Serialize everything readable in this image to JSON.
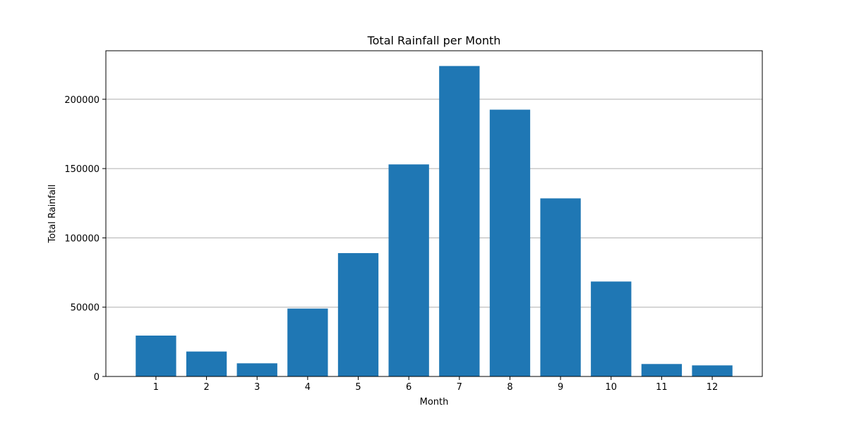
{
  "chart_data": {
    "type": "bar",
    "title": "Total Rainfall per Month",
    "xlabel": "Month",
    "ylabel": "Total Rainfall",
    "categories": [
      "1",
      "2",
      "3",
      "4",
      "5",
      "6",
      "7",
      "8",
      "9",
      "10",
      "11",
      "12"
    ],
    "values": [
      29500,
      18000,
      9500,
      49000,
      89000,
      153000,
      224000,
      192500,
      128500,
      68500,
      9000,
      8000
    ],
    "ylim": [
      0,
      235000
    ],
    "yticks": [
      0,
      50000,
      100000,
      150000,
      200000
    ],
    "ytick_labels": [
      "0",
      "50000",
      "100000",
      "150000",
      "200000"
    ],
    "grid": "horizontal",
    "bar_color": "#1f77b4",
    "grid_color": "#b0b0b0"
  }
}
